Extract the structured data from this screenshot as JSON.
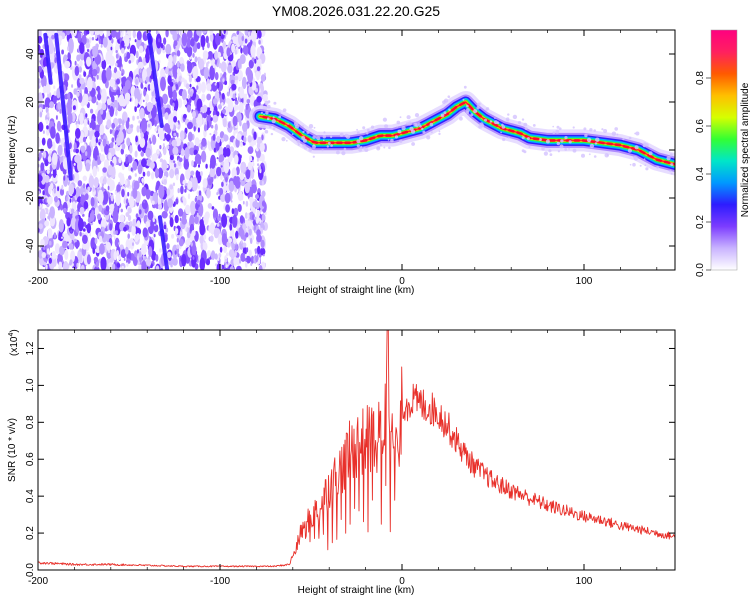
{
  "title": "YM08.2026.031.22.20.G25",
  "chart_data": [
    {
      "type": "heatmap",
      "xlabel": "Height of straight line (km)",
      "ylabel": "Frequency (Hz)",
      "xlim": [
        -200,
        150
      ],
      "ylim": [
        -50,
        50
      ],
      "x_ticks": [
        -200,
        -100,
        0,
        100
      ],
      "x_tick_labels": [
        "-200",
        "-100",
        "0",
        "100"
      ],
      "y_ticks": [
        -40,
        -20,
        0,
        20,
        40
      ],
      "y_tick_labels": [
        "-40",
        "-20",
        "0",
        "20",
        "40"
      ],
      "noise_region_x": [
        -200,
        -75
      ],
      "diagonal_streaks": [
        {
          "x": [
            -190,
            -182
          ],
          "y": [
            48,
            -12
          ]
        },
        {
          "x": [
            -196,
            -193
          ],
          "y": [
            48,
            28
          ]
        },
        {
          "x": [
            -139,
            -132
          ],
          "y": [
            48,
            10
          ]
        },
        {
          "x": [
            -133,
            -129
          ],
          "y": [
            -28,
            -50
          ]
        }
      ],
      "ridge": {
        "x": [
          -78,
          -70,
          -62,
          -55,
          -48,
          -42,
          -35,
          -28,
          -20,
          -12,
          -5,
          0,
          5,
          10,
          15,
          20,
          25,
          30,
          35,
          40,
          45,
          50,
          55,
          60,
          65,
          70,
          80,
          90,
          100,
          110,
          120,
          130,
          140,
          150
        ],
        "y": [
          14,
          13,
          10,
          6,
          3,
          3,
          3,
          3,
          4,
          6,
          6,
          7,
          8,
          9,
          11,
          13,
          15,
          18,
          20,
          16,
          13,
          11,
          9,
          8,
          7,
          5,
          4,
          4,
          4,
          3,
          2,
          0,
          -4,
          -6
        ]
      },
      "colorbar": {
        "label": "Normalized spectral amplitude",
        "range": [
          0,
          1
        ],
        "ticks": [
          0.0,
          0.2,
          0.4,
          0.6,
          0.8
        ],
        "tick_labels": [
          "0.0",
          "0.2",
          "0.4",
          "0.6",
          "0.8"
        ],
        "colormap": [
          "#ffffff",
          "#c9b3ff",
          "#7c3cff",
          "#2d1cff",
          "#0099ff",
          "#00e6c8",
          "#33ff33",
          "#d6ff00",
          "#ffbf00",
          "#ff5a00",
          "#ff2060",
          "#ff0080"
        ]
      }
    },
    {
      "type": "line",
      "xlabel": "Height of straight line (km)",
      "ylabel": "SNR (10 * v/v)",
      "y_multiplier_label": "(x10",
      "y_multiplier_exponent": "4",
      "y_multiplier_close": ")",
      "xlim": [
        -200,
        150
      ],
      "ylim": [
        0,
        1.3
      ],
      "x_ticks": [
        -200,
        -100,
        0,
        100
      ],
      "x_tick_labels": [
        "-200",
        "-100",
        "0",
        "100"
      ],
      "y_ticks": [
        0.0,
        0.2,
        0.4,
        0.6,
        0.8,
        1.0,
        1.2
      ],
      "y_tick_labels": [
        "0.0",
        "0.2",
        "0.4",
        "0.6",
        "0.8",
        "1.0",
        "1.2"
      ],
      "color": "#e8302a",
      "envelope": {
        "x": [
          -200,
          -180,
          -160,
          -140,
          -120,
          -100,
          -80,
          -70,
          -62,
          -58,
          -55,
          -50,
          -45,
          -40,
          -35,
          -30,
          -25,
          -20,
          -15,
          -10,
          -8,
          -6,
          -3,
          0,
          5,
          10,
          15,
          20,
          25,
          30,
          35,
          40,
          50,
          60,
          70,
          80,
          90,
          100,
          110,
          120,
          130,
          140,
          150
        ],
        "y": [
          0.04,
          0.03,
          0.03,
          0.025,
          0.02,
          0.02,
          0.02,
          0.02,
          0.03,
          0.12,
          0.22,
          0.28,
          0.35,
          0.45,
          0.52,
          0.62,
          0.68,
          0.7,
          0.72,
          0.75,
          1.15,
          0.7,
          0.65,
          0.88,
          0.92,
          0.9,
          0.88,
          0.85,
          0.78,
          0.7,
          0.62,
          0.56,
          0.48,
          0.43,
          0.39,
          0.35,
          0.32,
          0.29,
          0.27,
          0.24,
          0.22,
          0.2,
          0.18
        ]
      },
      "peak": {
        "x": -8,
        "y": 1.3
      }
    }
  ]
}
